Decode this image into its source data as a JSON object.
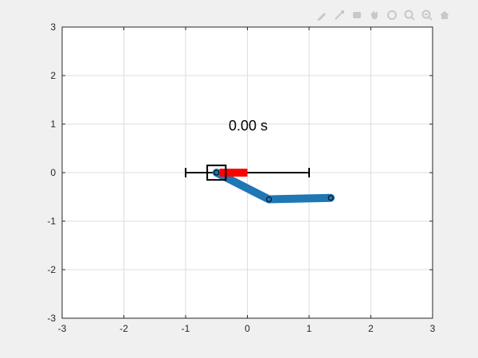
{
  "time_text": "0.00 s",
  "toolbar": {
    "icons": [
      "edit-plot-icon",
      "data-cursor-icon",
      "brush-icon",
      "pan-icon",
      "rotate-icon",
      "zoom-in-icon",
      "zoom-out-icon",
      "home-icon"
    ]
  },
  "axes": {
    "xlim": [
      -3,
      3
    ],
    "ylim": [
      -3,
      3
    ],
    "xticks": [
      "-3",
      "-2",
      "-1",
      "0",
      "1",
      "2",
      "3"
    ],
    "yticks": [
      "3",
      "2",
      "1",
      "0",
      "-1",
      "-2",
      "-3"
    ],
    "grid": true
  },
  "scene": {
    "rail": {
      "x_min": -1,
      "x_max": 1,
      "y": 0
    },
    "cart": {
      "x": -0.5,
      "y": 0,
      "half_width": 0.15
    },
    "force_bar": {
      "x_start": -0.45,
      "x_end": 0,
      "y": 0
    },
    "pendulum_joints": [
      {
        "x": -0.5,
        "y": 0
      },
      {
        "x": 0.35,
        "y": -0.55
      },
      {
        "x": 1.35,
        "y": -0.52
      }
    ],
    "colors": {
      "link": "#1f77b4",
      "force": "#ff0000",
      "rail": "#000000",
      "cart": "#000000",
      "grid": "#dedede",
      "axes_bg": "#ffffff"
    }
  }
}
